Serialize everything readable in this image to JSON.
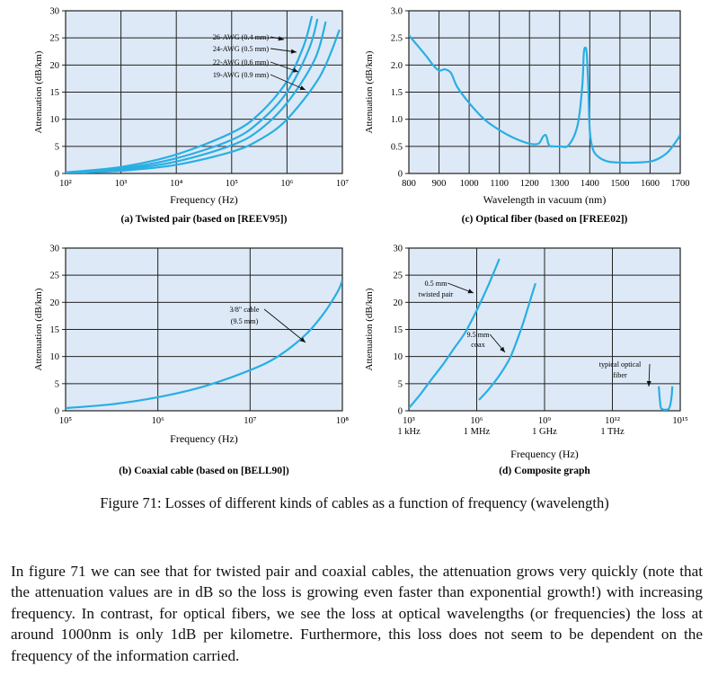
{
  "chart_data": [
    {
      "id": "a",
      "type": "line",
      "caption": "(a) Twisted pair (based on [REEV95])",
      "xlabel": "Frequency (Hz)",
      "ylabel": "Attenuation (dB/km)",
      "xscale": "log",
      "xlim": [
        2,
        7
      ],
      "ylim": [
        0,
        30
      ],
      "xticks": [
        2,
        3,
        4,
        5,
        6,
        7
      ],
      "xticklabels": [
        "10²",
        "10³",
        "10⁴",
        "10⁵",
        "10⁶",
        "10⁷"
      ],
      "yticks": [
        0,
        5,
        10,
        15,
        20,
        25,
        30
      ],
      "yticklabels": [
        "0",
        "5",
        "10",
        "15",
        "20",
        "25",
        "30"
      ],
      "grid": true,
      "series": [
        {
          "name": "26-AWG (0.4 mm)",
          "x": [
            2,
            3,
            4,
            5,
            5.5,
            6,
            6.3,
            6.45
          ],
          "y": [
            0.2,
            1.2,
            3.5,
            7.5,
            11,
            17,
            23.5,
            29
          ]
        },
        {
          "name": "24-AWG (0.5 mm)",
          "x": [
            2,
            3,
            4,
            5,
            5.5,
            6,
            6.4,
            6.55
          ],
          "y": [
            0.1,
            0.9,
            2.8,
            6.2,
            9.5,
            15,
            23,
            28.5
          ]
        },
        {
          "name": "22-AWG (0.6 mm)",
          "x": [
            2,
            3,
            4,
            5,
            5.5,
            6,
            6.5,
            6.7
          ],
          "y": [
            0.1,
            0.7,
            2.2,
            5.2,
            8,
            13,
            21,
            28
          ]
        },
        {
          "name": "19-AWG (0.9 mm)",
          "x": [
            2,
            3,
            4,
            5,
            5.5,
            6,
            6.6,
            6.95
          ],
          "y": [
            0.05,
            0.5,
            1.6,
            4,
            6.2,
            10,
            18,
            26.5
          ]
        }
      ]
    },
    {
      "id": "c",
      "type": "line",
      "caption": "(c) Optical fiber (based on [FREE02])",
      "xlabel": "Wavelength in vacuum (nm)",
      "ylabel": "Attenuation (dB/km)",
      "xlim": [
        800,
        1700
      ],
      "ylim": [
        0,
        3
      ],
      "xticks": [
        800,
        900,
        1000,
        1100,
        1200,
        1300,
        1400,
        1500,
        1600,
        1700
      ],
      "xticklabels": [
        "800",
        "900",
        "1000",
        "1100",
        "1200",
        "1300",
        "1400",
        "1500",
        "1600",
        "1700"
      ],
      "yticks": [
        0,
        0.5,
        1,
        1.5,
        2,
        2.5,
        3
      ],
      "yticklabels": [
        "0",
        "0.5",
        "1.0",
        "1.5",
        "2.0",
        "2.5",
        "3.0"
      ],
      "grid": true,
      "series": [
        {
          "name": "",
          "x": [
            800,
            830,
            860,
            880,
            900,
            920,
            940,
            960,
            1000,
            1050,
            1100,
            1150,
            1200,
            1230,
            1245,
            1255,
            1265,
            1280,
            1300,
            1330,
            1360,
            1375,
            1380,
            1385,
            1390,
            1395,
            1400,
            1410,
            1430,
            1460,
            1500,
            1550,
            1600,
            1630,
            1660,
            1690,
            1700
          ],
          "y": [
            2.55,
            2.35,
            2.15,
            2.0,
            1.9,
            1.92,
            1.85,
            1.6,
            1.3,
            1.0,
            0.8,
            0.65,
            0.55,
            0.55,
            0.68,
            0.7,
            0.52,
            0.5,
            0.5,
            0.52,
            0.9,
            1.6,
            2.2,
            2.32,
            2.2,
            1.6,
            0.8,
            0.45,
            0.3,
            0.22,
            0.2,
            0.2,
            0.22,
            0.28,
            0.4,
            0.62,
            0.72
          ]
        }
      ]
    },
    {
      "id": "b",
      "type": "line",
      "caption": "(b) Coaxial cable (based on [BELL90])",
      "xlabel": "Frequency (Hz)",
      "ylabel": "Attenuation (dB/km)",
      "xscale": "log",
      "xlim": [
        5,
        8
      ],
      "ylim": [
        0,
        30
      ],
      "xticks": [
        5,
        6,
        7,
        8
      ],
      "xticklabels": [
        "10⁵",
        "10⁶",
        "10⁷",
        "10⁸"
      ],
      "yticks": [
        0,
        5,
        10,
        15,
        20,
        25,
        30
      ],
      "yticklabels": [
        "0",
        "5",
        "10",
        "15",
        "20",
        "25",
        "30"
      ],
      "grid": true,
      "series": [
        {
          "name": "3/8\" cable (9.5 mm)",
          "x": [
            5,
            5.5,
            6,
            6.5,
            7,
            7.3,
            7.6,
            7.8,
            7.95,
            8
          ],
          "y": [
            0.5,
            1.2,
            2.5,
            4.5,
            7.5,
            10,
            14,
            18,
            22,
            24
          ]
        }
      ]
    },
    {
      "id": "d",
      "type": "line",
      "caption": "(d) Composite graph",
      "xlabel": "Frequency (Hz)",
      "ylabel": "Attenuation (dB/km)",
      "xscale": "log",
      "xlim": [
        3,
        15
      ],
      "ylim": [
        0,
        30
      ],
      "xticks": [
        3,
        6,
        9,
        12,
        15
      ],
      "xticklabels": [
        "10³",
        "10⁶",
        "10⁹",
        "10¹²",
        "10¹⁵"
      ],
      "xticklabels2": [
        "1 kHz",
        "1 MHz",
        "1 GHz",
        "1 THz",
        ""
      ],
      "yticks": [
        0,
        5,
        10,
        15,
        20,
        25,
        30
      ],
      "yticklabels": [
        "0",
        "5",
        "10",
        "15",
        "20",
        "25",
        "30"
      ],
      "grid": true,
      "series": [
        {
          "name": "0.5 mm twisted pair",
          "x": [
            3,
            3.5,
            4,
            4.5,
            5,
            5.5,
            6,
            6.5,
            7
          ],
          "y": [
            0.5,
            3,
            5.8,
            8.5,
            11.5,
            14.5,
            18.5,
            23,
            28
          ]
        },
        {
          "name": "9.5 mm coax",
          "x": [
            6.1,
            6.5,
            7,
            7.5,
            8,
            8.3,
            8.6
          ],
          "y": [
            2,
            3.8,
            6.5,
            10,
            15.5,
            19.5,
            23.5
          ]
        },
        {
          "name": "typical optical fiber",
          "x": [
            14.05,
            14.1,
            14.15,
            14.3,
            14.5,
            14.6,
            14.65
          ],
          "y": [
            4.5,
            2,
            0.5,
            0.2,
            0.4,
            2,
            4.5
          ]
        }
      ]
    }
  ],
  "figure_caption": "Figure 71: Losses of different kinds of cables as a function of frequency (wavelength)",
  "paragraph": "In figure 71 we can see that for twisted pair and coaxial cables, the attenuation grows very quickly (note that the attenuation values are in dB so the loss is growing even faster than exponential growth!) with increasing frequency. In contrast, for optical fibers, we see the loss at optical wavelengths (or frequencies) the loss at around 1000nm is only 1dB per kilometre. Furthermore, this loss does not seem to be dependent on the frequency of the information carried.",
  "colors": {
    "panel_bg": "#dde9f6",
    "curve": "#29aee3",
    "grid": "#222222"
  }
}
